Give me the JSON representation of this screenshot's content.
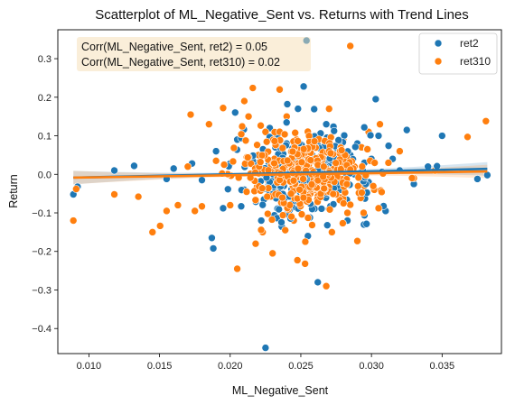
{
  "chart_data": {
    "type": "scatter",
    "title": "Scatterplot of ML_Negative_Sent vs. Returns with Trend Lines",
    "xlabel": "ML_Negative_Sent",
    "ylabel": "Return",
    "xlim": [
      0.0078,
      0.0392
    ],
    "ylim": [
      -0.465,
      0.375
    ],
    "xticks": [
      0.01,
      0.015,
      0.02,
      0.025,
      0.03,
      0.035
    ],
    "xtick_labels": [
      "0.010",
      "0.015",
      "0.020",
      "0.025",
      "0.030",
      "0.035"
    ],
    "yticks": [
      -0.4,
      -0.3,
      -0.2,
      -0.1,
      0.0,
      0.1,
      0.2,
      0.3
    ],
    "ytick_labels": [
      "−0.4",
      "−0.3",
      "−0.2",
      "−0.1",
      "0.0",
      "0.1",
      "0.2",
      "0.3"
    ],
    "grid": false,
    "legend_position": "top-right",
    "annotation": [
      "Corr(ML_Negative_Sent, ret2) = 0.05",
      "Corr(ML_Negative_Sent, ret310) = 0.02"
    ],
    "annotation_position": "top-left",
    "colors": {
      "ret2": "#1f77b4",
      "ret310": "#ff7f0e",
      "annotation_box": "#f5deb3"
    },
    "series": [
      {
        "name": "ret2",
        "color": "#1f77b4",
        "points": [
          [
            0.0089,
            -0.052
          ],
          [
            0.0092,
            -0.032
          ],
          [
            0.0118,
            0.01
          ],
          [
            0.0132,
            0.022
          ],
          [
            0.0155,
            -0.012
          ],
          [
            0.016,
            0.015
          ],
          [
            0.0173,
            0.028
          ],
          [
            0.018,
            -0.015
          ],
          [
            0.0187,
            -0.165
          ],
          [
            0.019,
            0.06
          ],
          [
            0.0195,
            -0.088
          ],
          [
            0.02,
            0.028
          ],
          [
            0.0205,
            0.09
          ],
          [
            0.021,
            -0.04
          ],
          [
            0.0215,
            0.045
          ],
          [
            0.0218,
            0.03
          ],
          [
            0.0222,
            -0.12
          ],
          [
            0.0225,
            -0.45
          ],
          [
            0.0228,
            0.12
          ],
          [
            0.023,
            0.025
          ],
          [
            0.0232,
            -0.06
          ],
          [
            0.0235,
            0.04
          ],
          [
            0.0238,
            -0.03
          ],
          [
            0.024,
            0.08
          ],
          [
            0.0242,
            0.01
          ],
          [
            0.0245,
            -0.02
          ],
          [
            0.0248,
            0.17
          ],
          [
            0.025,
            -0.07
          ],
          [
            0.0252,
            0.228
          ],
          [
            0.0254,
            0.347
          ],
          [
            0.0255,
            -0.16
          ],
          [
            0.0258,
            0.05
          ],
          [
            0.026,
            -0.01
          ],
          [
            0.0262,
            -0.28
          ],
          [
            0.0265,
            0.03
          ],
          [
            0.0268,
            0.13
          ],
          [
            0.027,
            -0.09
          ],
          [
            0.0272,
            0.02
          ],
          [
            0.0275,
            0.07
          ],
          [
            0.0278,
            -0.04
          ],
          [
            0.028,
            0.01
          ],
          [
            0.0283,
            -0.12
          ],
          [
            0.0285,
            0.05
          ],
          [
            0.0288,
            0.0
          ],
          [
            0.029,
            0.08
          ],
          [
            0.0293,
            -0.05
          ],
          [
            0.0295,
            0.03
          ],
          [
            0.0298,
            -0.02
          ],
          [
            0.03,
            0.04
          ],
          [
            0.0303,
            0.195
          ],
          [
            0.0305,
            0.1
          ],
          [
            0.031,
            -0.095
          ],
          [
            0.0315,
            0.04
          ],
          [
            0.032,
            0.01
          ],
          [
            0.0325,
            0.115
          ],
          [
            0.033,
            -0.025
          ],
          [
            0.034,
            0.02
          ],
          [
            0.035,
            0.1
          ],
          [
            0.0375,
            -0.012
          ],
          [
            0.0382,
            -0.002
          ]
        ],
        "trend": {
          "slope": 0.77,
          "intercept": -0.0153,
          "x_range": [
            0.0089,
            0.0382
          ]
        }
      },
      {
        "name": "ret310",
        "color": "#ff7f0e",
        "points": [
          [
            0.0089,
            -0.12
          ],
          [
            0.0091,
            -0.038
          ],
          [
            0.0118,
            -0.052
          ],
          [
            0.0135,
            -0.058
          ],
          [
            0.0145,
            -0.15
          ],
          [
            0.0155,
            -0.095
          ],
          [
            0.0163,
            -0.08
          ],
          [
            0.017,
            0.02
          ],
          [
            0.0172,
            0.155
          ],
          [
            0.0175,
            -0.095
          ],
          [
            0.018,
            -0.083
          ],
          [
            0.0185,
            0.13
          ],
          [
            0.019,
            0.035
          ],
          [
            0.0195,
            0.172
          ],
          [
            0.02,
            -0.08
          ],
          [
            0.0205,
            -0.245
          ],
          [
            0.021,
            0.19
          ],
          [
            0.0213,
            0.15
          ],
          [
            0.0216,
            0.224
          ],
          [
            0.0218,
            -0.18
          ],
          [
            0.022,
            0.05
          ],
          [
            0.0223,
            -0.15
          ],
          [
            0.0225,
            0.11
          ],
          [
            0.0227,
            -0.02
          ],
          [
            0.023,
            -0.205
          ],
          [
            0.0232,
            0.08
          ],
          [
            0.0235,
            0.22
          ],
          [
            0.0237,
            -0.05
          ],
          [
            0.024,
            0.15
          ],
          [
            0.0242,
            0.02
          ],
          [
            0.0245,
            -0.12
          ],
          [
            0.0247,
            0.09
          ],
          [
            0.025,
            -0.01
          ],
          [
            0.0253,
            -0.232
          ],
          [
            0.0255,
            0.06
          ],
          [
            0.0258,
            -0.08
          ],
          [
            0.026,
            0.1
          ],
          [
            0.0262,
            -0.04
          ],
          [
            0.0265,
            0.03
          ],
          [
            0.0268,
            -0.29
          ],
          [
            0.027,
            0.17
          ],
          [
            0.0272,
            -0.15
          ],
          [
            0.0275,
            0.05
          ],
          [
            0.0278,
            -0.06
          ],
          [
            0.028,
            0.09
          ],
          [
            0.0283,
            -0.1
          ],
          [
            0.0285,
            0.333
          ],
          [
            0.0288,
            0.02
          ],
          [
            0.029,
            -0.173
          ],
          [
            0.0293,
            0.07
          ],
          [
            0.0295,
            -0.03
          ],
          [
            0.0298,
            0.11
          ],
          [
            0.0302,
            -0.04
          ],
          [
            0.0306,
            0.13
          ],
          [
            0.0312,
            0.03
          ],
          [
            0.032,
            0.06
          ],
          [
            0.033,
            -0.01
          ],
          [
            0.0345,
            0.01
          ],
          [
            0.0368,
            0.097
          ],
          [
            0.0381,
            0.138
          ]
        ],
        "trend": {
          "slope": 0.55,
          "intercept": -0.0135,
          "x_range": [
            0.0089,
            0.0382
          ]
        }
      }
    ]
  }
}
